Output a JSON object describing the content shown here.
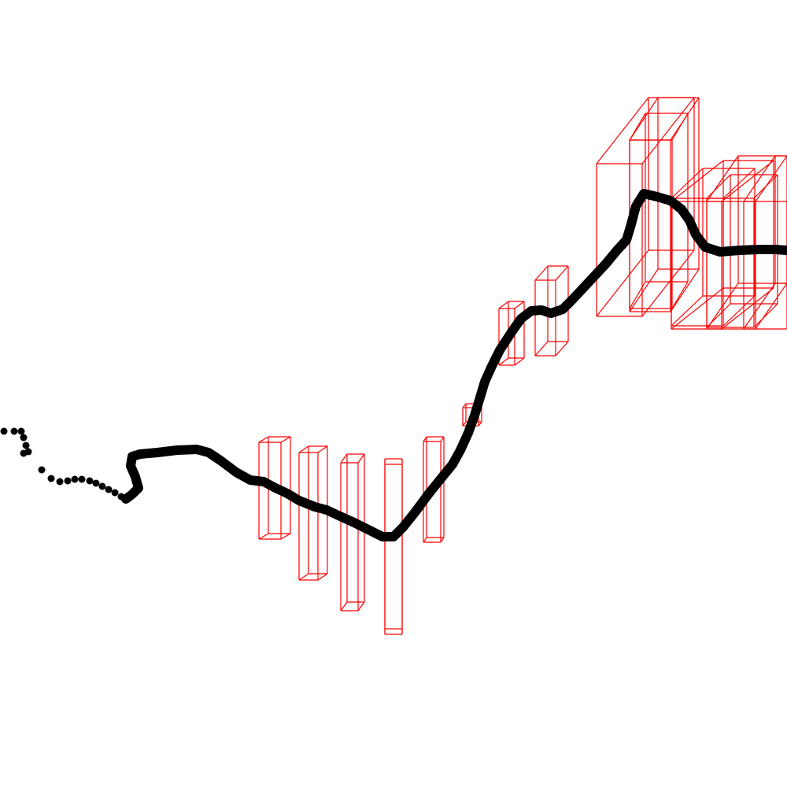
{
  "scene": {
    "colors": {
      "background": "#ffffff",
      "trajectory": "#000000",
      "boxes": "#ff0000"
    },
    "box_count": 16,
    "trajectory_style": "dotted-then-solid"
  }
}
